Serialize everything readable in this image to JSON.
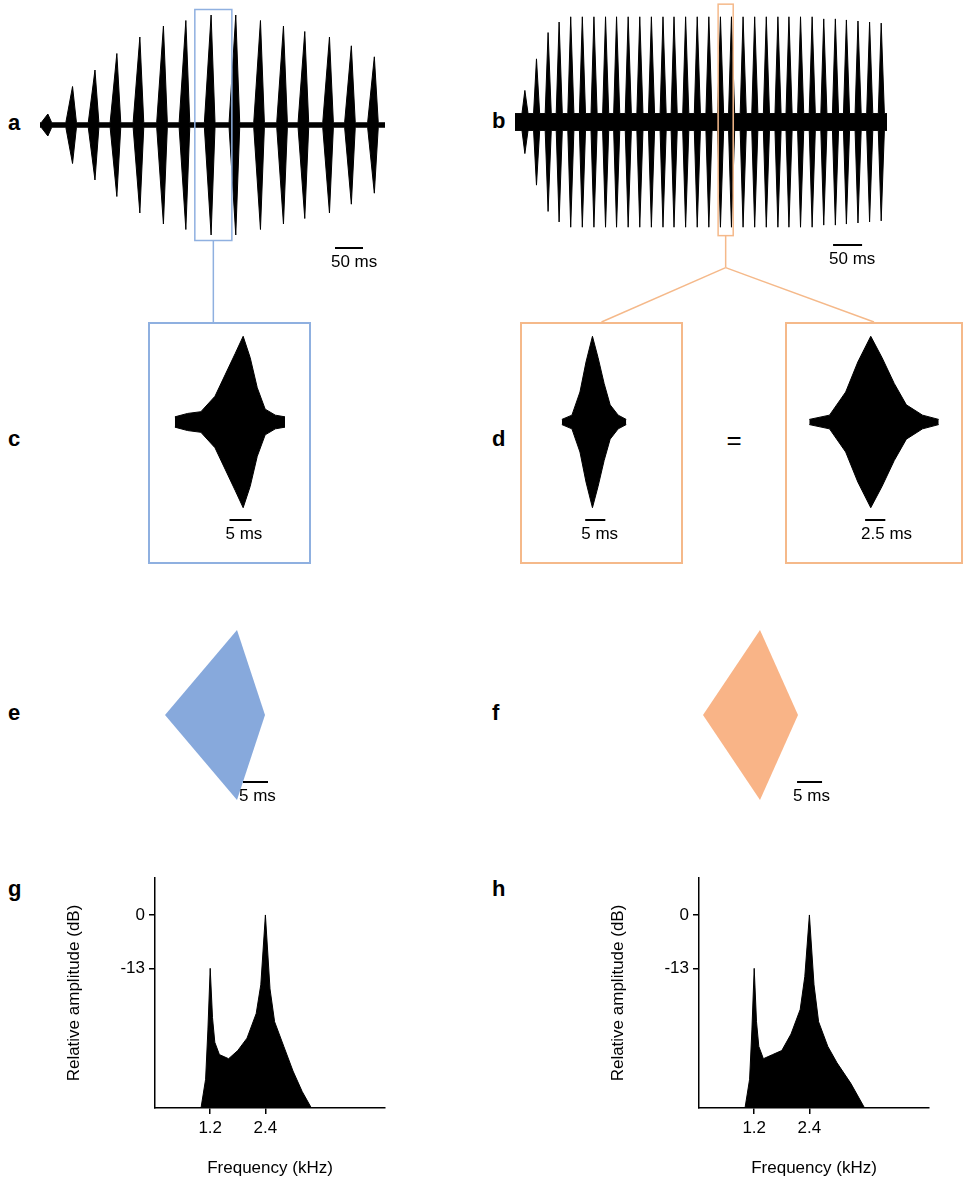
{
  "chart_data": [
    {
      "panel": "a",
      "type": "oscillogram",
      "xlim": [
        0,
        615
      ],
      "ylim": [
        -1.1,
        1.1
      ],
      "tick_labels": false,
      "color": "#000000",
      "noise_amplitude": 0.02,
      "pulse_times": [
        14,
        58,
        98,
        137,
        178,
        220,
        260,
        305,
        349,
        393,
        434,
        472,
        516,
        555,
        596
      ],
      "pulse_amplitudes": [
        0.1,
        0.35,
        0.5,
        0.65,
        0.8,
        0.9,
        0.95,
        1.0,
        1.0,
        0.95,
        0.9,
        0.85,
        0.8,
        0.72,
        0.62
      ],
      "pulse_rise": 12,
      "pulse_fall": 7,
      "scale_bar": {
        "value": 50,
        "label": "50 ms"
      },
      "highlight": {
        "x": [
          276,
          342
        ],
        "y": [
          -1.05,
          1.05
        ],
        "color": "#8fb0e0"
      }
    },
    {
      "panel": "b",
      "type": "oscillogram",
      "xlim": [
        0,
        641
      ],
      "ylim": [
        -1.15,
        1.15
      ],
      "tick_labels": false,
      "color": "#000000",
      "noise_amplitude": 0.08,
      "pulse_times": [
        17,
        37,
        57,
        76,
        96,
        116,
        136,
        156,
        175,
        195,
        215,
        235,
        255,
        274,
        294,
        314,
        334,
        354,
        373,
        393,
        413,
        433,
        453,
        472,
        492,
        512,
        532,
        552,
        571,
        591,
        611,
        631
      ],
      "pulse_amplitudes": [
        0.3,
        0.6,
        0.85,
        0.95,
        1.0,
        1.0,
        1.0,
        1.0,
        1.0,
        1.0,
        1.0,
        1.0,
        1.0,
        1.0,
        1.0,
        1.0,
        1.0,
        1.0,
        1.0,
        1.0,
        1.0,
        1.0,
        1.0,
        1.0,
        1.0,
        1.0,
        0.98,
        0.98,
        0.97,
        0.96,
        0.95,
        0.94
      ],
      "pulse_rise": 5,
      "pulse_fall": 5.5,
      "scale_bar": {
        "value": 50,
        "label": "50 ms"
      },
      "highlight": {
        "x": [
          350,
          376
        ],
        "y": [
          -1.08,
          1.12
        ],
        "color": "#f5b98a"
      }
    },
    {
      "panel": "c",
      "type": "oscillogram",
      "xlim": [
        0,
        37
      ],
      "ylim": [
        -1.05,
        1.05
      ],
      "tick_labels": false,
      "color": "#000000",
      "x": [
        6.1,
        9,
        12,
        15.2,
        17.5,
        19.8,
        21.6,
        23.2,
        24.8,
        26.6,
        28.9,
        31.1
      ],
      "values": [
        0.06,
        0.1,
        0.12,
        0.3,
        0.55,
        0.8,
        1.0,
        0.75,
        0.4,
        0.15,
        0.08,
        0.06
      ],
      "scale_bar": {
        "value": 5,
        "label": "5 ms"
      }
    },
    {
      "panel": "d",
      "type": "oscillogram",
      "xlim": [
        -7.4,
        33.1
      ],
      "ylim": [
        -1.05,
        1.05
      ],
      "tick_labels": false,
      "color": "#000000",
      "x": [
        3,
        5.5,
        7.5,
        9,
        10.6,
        12,
        13.5,
        15,
        17,
        19
      ],
      "values": [
        0.03,
        0.08,
        0.35,
        0.7,
        1.0,
        0.75,
        0.45,
        0.2,
        0.08,
        0.03
      ],
      "scale_bar": {
        "value": 5,
        "label": "5 ms"
      }
    },
    {
      "annotation": "=",
      "type": "oscillogram",
      "xlim": [
        0,
        22
      ],
      "ylim": [
        -1.05,
        1.05
      ],
      "tick_labels": false,
      "color": "#000000",
      "x": [
        3,
        5.5,
        7.5,
        9,
        10.6,
        12,
        13.5,
        15,
        17,
        19
      ],
      "values": [
        0.03,
        0.08,
        0.35,
        0.7,
        1.0,
        0.75,
        0.45,
        0.2,
        0.08,
        0.03
      ],
      "scale_bar": {
        "value": 2.5,
        "label": "2.5 ms"
      }
    },
    {
      "panel": "e",
      "type": "envelope",
      "xlim": [
        -3,
        27
      ],
      "ylim": [
        -1.06,
        1.06
      ],
      "tick_labels": false,
      "color": "#87a9dc",
      "x": [
        0,
        14.4,
        20
      ],
      "values": [
        0,
        1,
        0
      ],
      "scale_bar": {
        "value": 5,
        "label": "5 ms"
      }
    },
    {
      "panel": "f",
      "type": "envelope",
      "xlim": [
        -3,
        27
      ],
      "ylim": [
        -1.06,
        1.06
      ],
      "tick_labels": false,
      "color": "#f9b487",
      "x": [
        0,
        11.4,
        19
      ],
      "values": [
        0,
        1,
        0
      ],
      "scale_bar": {
        "value": 5,
        "label": "5 ms"
      }
    },
    {
      "panel": "g",
      "type": "area",
      "x_label": "Frequency (kHz)",
      "y_label": "Relative amplitude (dB)",
      "color": "#000000",
      "xlim": [
        0,
        5
      ],
      "ylim": [
        -47,
        9
      ],
      "xticks": [
        1.2,
        2.4
      ],
      "yticks": [
        -13,
        0
      ],
      "grid": false,
      "x": [
        1.0,
        1.1,
        1.15,
        1.2,
        1.25,
        1.3,
        1.4,
        1.6,
        1.8,
        2.0,
        2.2,
        2.3,
        2.4,
        2.5,
        2.6,
        2.8,
        3.0,
        3.2,
        3.4
      ],
      "values": [
        -47,
        -40,
        -28,
        -13,
        -25,
        -31,
        -34,
        -35,
        -33,
        -30,
        -24,
        -17,
        0,
        -18,
        -26,
        -32,
        -38,
        -43,
        -47
      ]
    },
    {
      "panel": "h",
      "type": "area",
      "x_label": "Frequency (kHz)",
      "y_label": "Relative amplitude (dB)",
      "color": "#000000",
      "xlim": [
        0,
        5
      ],
      "ylim": [
        -47,
        9
      ],
      "xticks": [
        1.2,
        2.4
      ],
      "yticks": [
        -13,
        0
      ],
      "grid": false,
      "x": [
        1.0,
        1.1,
        1.15,
        1.2,
        1.25,
        1.3,
        1.4,
        1.6,
        1.8,
        2.0,
        2.2,
        2.3,
        2.4,
        2.5,
        2.6,
        2.8,
        3.0,
        3.3,
        3.6
      ],
      "values": [
        -47,
        -40,
        -28,
        -13,
        -26,
        -32,
        -35,
        -34,
        -33,
        -29,
        -23,
        -15,
        0,
        -17,
        -26,
        -32,
        -36,
        -41,
        -47
      ]
    }
  ]
}
